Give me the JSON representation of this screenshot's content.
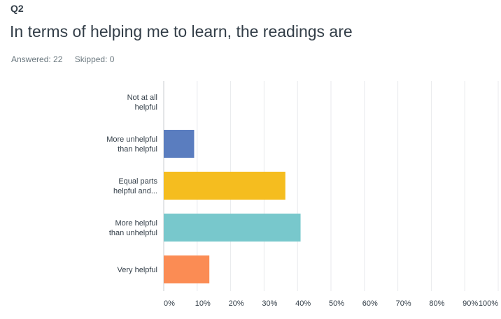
{
  "question": {
    "number": "Q2",
    "title": "In terms of helping me to learn, the readings are",
    "answered": "Answered: 22",
    "skipped": "Skipped: 0"
  },
  "chart_data": {
    "type": "bar",
    "orientation": "horizontal",
    "categories": [
      [
        "Not at all",
        "helpful"
      ],
      [
        "More unhelpful",
        "than helpful"
      ],
      [
        "Equal parts",
        "helpful and..."
      ],
      [
        "More helpful",
        "than unhelpful"
      ],
      [
        "Very helpful"
      ]
    ],
    "values": [
      0,
      9.09,
      36.36,
      40.91,
      13.64
    ],
    "colors": [
      "#b5b5b5",
      "#5a7dbf",
      "#f5bd1f",
      "#78c8cc",
      "#fb8c54"
    ],
    "xlim": [
      0,
      100
    ],
    "x_ticks": [
      "0%",
      "10%",
      "20%",
      "30%",
      "40%",
      "50%",
      "60%",
      "70%",
      "80%",
      "90%",
      "100%"
    ],
    "grid": true,
    "legend": "none"
  }
}
